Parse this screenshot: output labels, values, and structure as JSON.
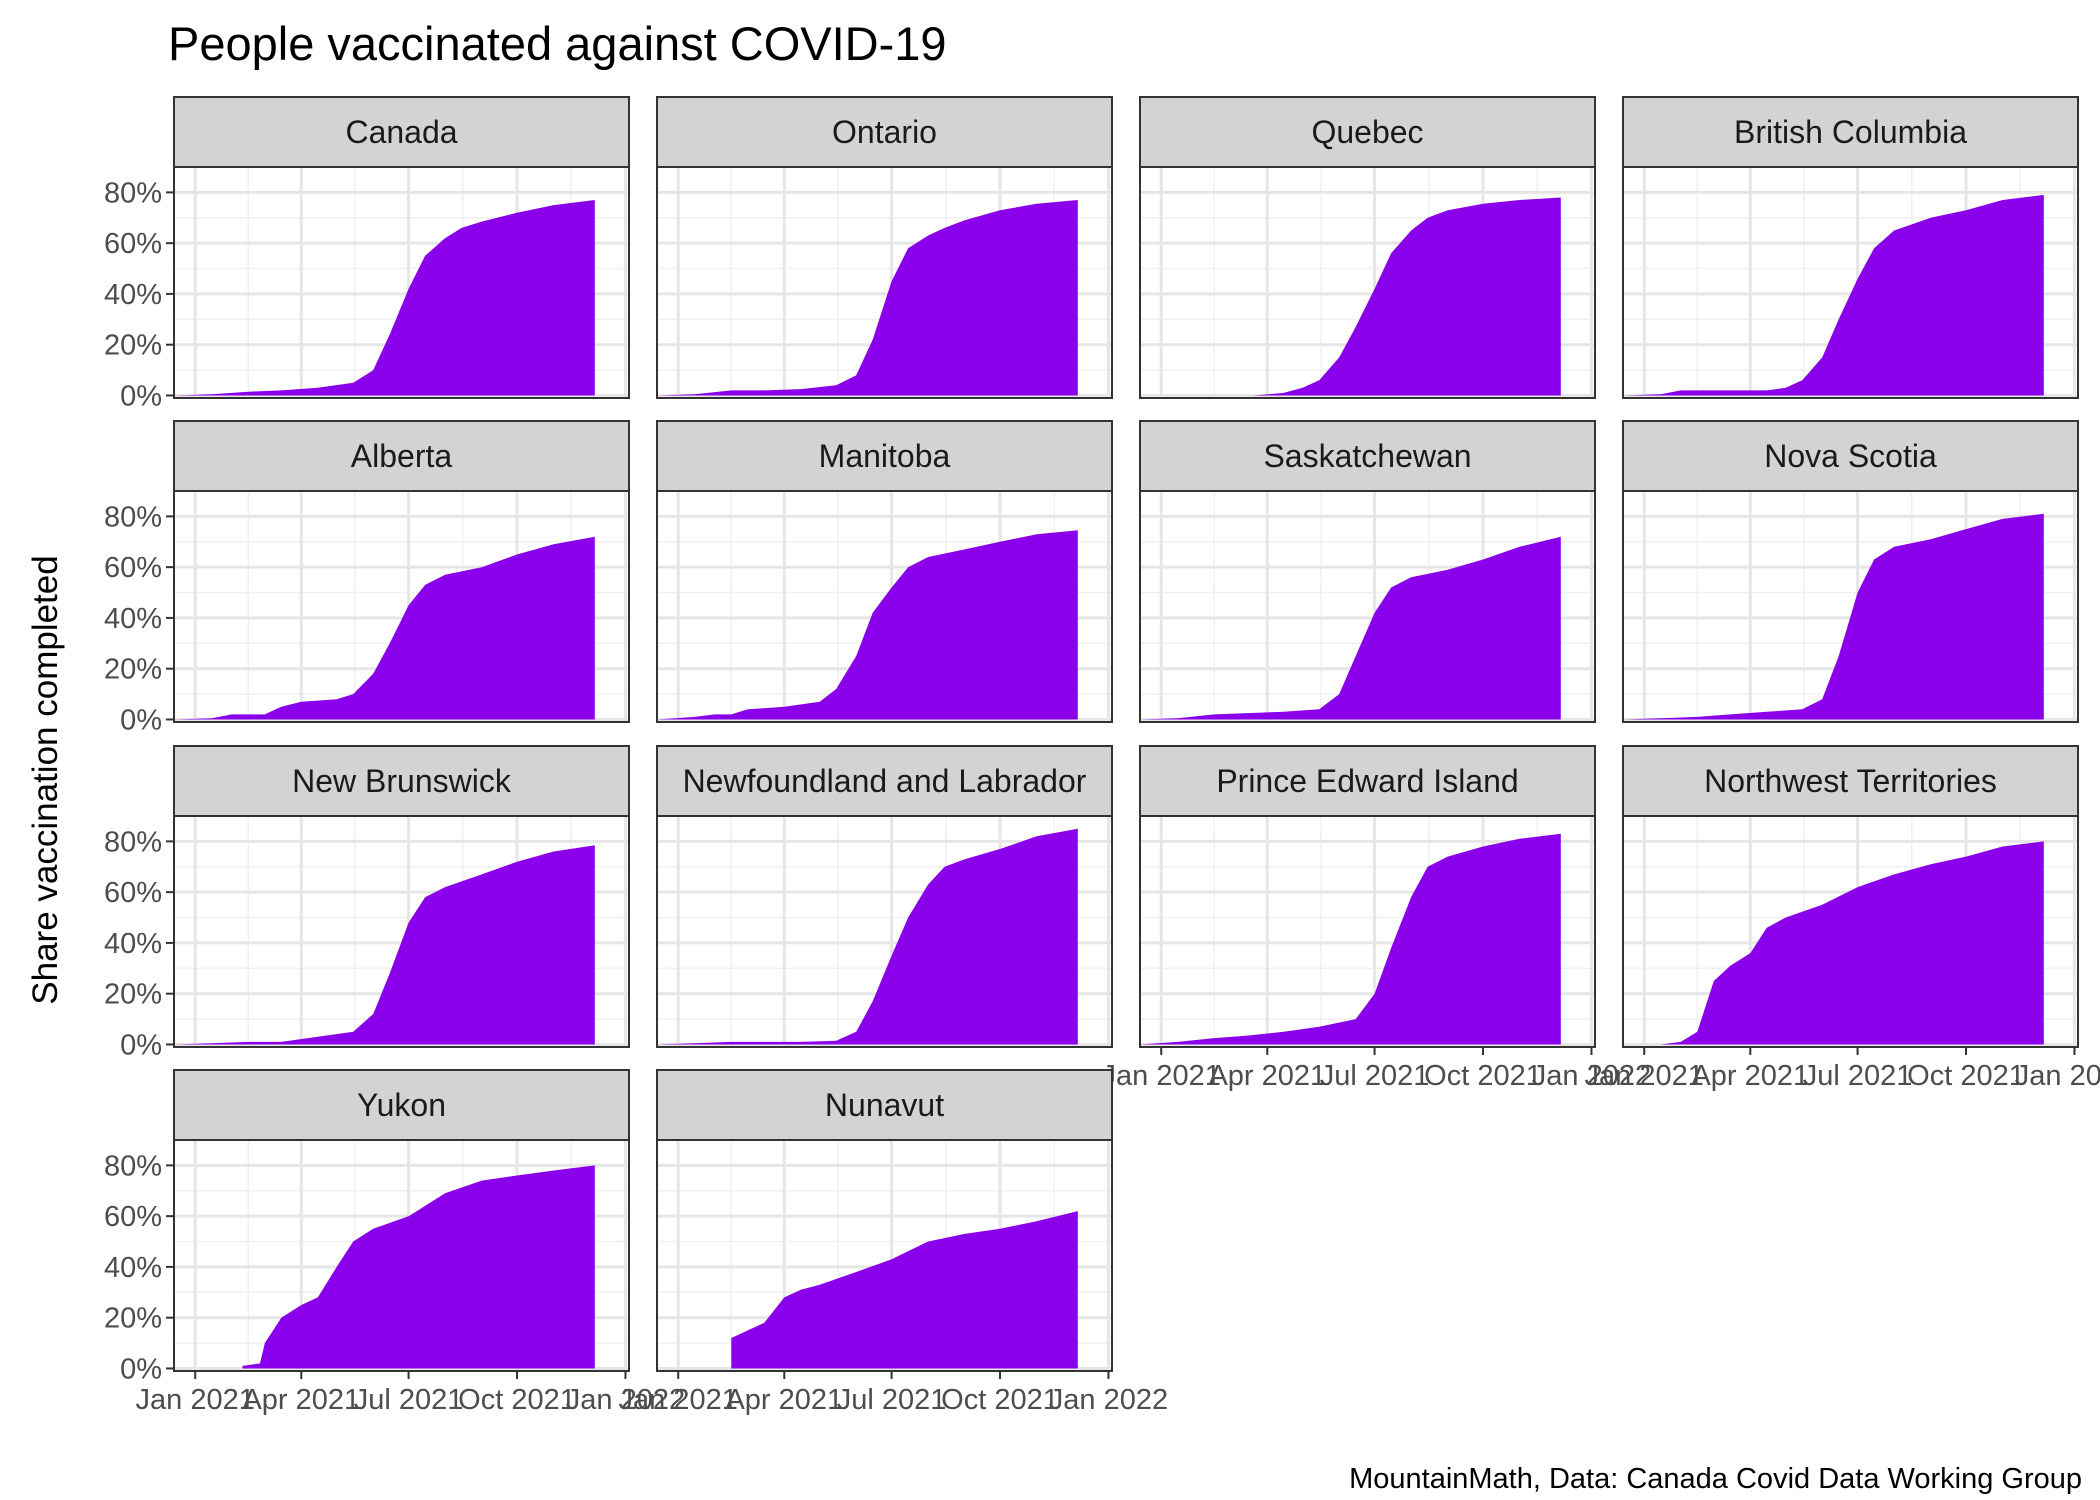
{
  "chart_data": {
    "type": "area",
    "title": "People vaccinated against COVID-19",
    "ylabel": "Share vaccination completed",
    "xlabel": "",
    "caption": "MountainMath, Data: Canada Covid Data Working Group",
    "x_ticks": [
      "2021-01-01",
      "2021-04-01",
      "2021-07-01",
      "2021-10-01",
      "2022-01-01"
    ],
    "x_tick_labels": [
      "Jan 2021",
      "Apr 2021",
      "Jul 2021",
      "Oct 2021",
      "Jan 2022"
    ],
    "xlim": [
      "2020-12-14",
      "2022-01-04"
    ],
    "y_ticks": [
      0,
      0.2,
      0.4,
      0.6,
      0.8
    ],
    "y_tick_labels": [
      "0%",
      "20%",
      "40%",
      "60%",
      "80%"
    ],
    "ylim": [
      -0.01,
      0.9
    ],
    "fill_color": "#8B00EB",
    "strip_color": "#D3D3D3",
    "grid": true,
    "facets": [
      {
        "name": "Canada",
        "points": [
          [
            "2020-12-14",
            0
          ],
          [
            "2021-01-15",
            0.005
          ],
          [
            "2021-02-15",
            0.015
          ],
          [
            "2021-03-15",
            0.02
          ],
          [
            "2021-04-15",
            0.03
          ],
          [
            "2021-05-15",
            0.05
          ],
          [
            "2021-06-01",
            0.1
          ],
          [
            "2021-06-15",
            0.24
          ],
          [
            "2021-07-01",
            0.42
          ],
          [
            "2021-07-15",
            0.55
          ],
          [
            "2021-08-01",
            0.62
          ],
          [
            "2021-08-15",
            0.66
          ],
          [
            "2021-09-01",
            0.685
          ],
          [
            "2021-10-01",
            0.72
          ],
          [
            "2021-11-01",
            0.75
          ],
          [
            "2021-12-06",
            0.77
          ]
        ]
      },
      {
        "name": "Ontario",
        "points": [
          [
            "2020-12-14",
            0
          ],
          [
            "2021-01-15",
            0.005
          ],
          [
            "2021-02-15",
            0.02
          ],
          [
            "2021-03-15",
            0.02
          ],
          [
            "2021-04-15",
            0.025
          ],
          [
            "2021-05-15",
            0.04
          ],
          [
            "2021-06-01",
            0.08
          ],
          [
            "2021-06-15",
            0.22
          ],
          [
            "2021-07-01",
            0.45
          ],
          [
            "2021-07-15",
            0.58
          ],
          [
            "2021-08-01",
            0.63
          ],
          [
            "2021-08-15",
            0.66
          ],
          [
            "2021-09-01",
            0.69
          ],
          [
            "2021-10-01",
            0.73
          ],
          [
            "2021-11-01",
            0.755
          ],
          [
            "2021-12-06",
            0.77
          ]
        ]
      },
      {
        "name": "Quebec",
        "points": [
          [
            "2021-03-20",
            0
          ],
          [
            "2021-04-15",
            0.01
          ],
          [
            "2021-05-01",
            0.03
          ],
          [
            "2021-05-15",
            0.06
          ],
          [
            "2021-06-01",
            0.15
          ],
          [
            "2021-06-15",
            0.27
          ],
          [
            "2021-07-01",
            0.42
          ],
          [
            "2021-07-15",
            0.56
          ],
          [
            "2021-08-01",
            0.65
          ],
          [
            "2021-08-15",
            0.7
          ],
          [
            "2021-09-01",
            0.73
          ],
          [
            "2021-10-01",
            0.755
          ],
          [
            "2021-11-01",
            0.77
          ],
          [
            "2021-12-06",
            0.78
          ]
        ]
      },
      {
        "name": "British Columbia",
        "points": [
          [
            "2020-12-14",
            0
          ],
          [
            "2021-01-15",
            0.005
          ],
          [
            "2021-02-01",
            0.02
          ],
          [
            "2021-03-15",
            0.02
          ],
          [
            "2021-04-15",
            0.02
          ],
          [
            "2021-05-01",
            0.03
          ],
          [
            "2021-05-15",
            0.06
          ],
          [
            "2021-06-01",
            0.15
          ],
          [
            "2021-06-15",
            0.3
          ],
          [
            "2021-07-01",
            0.46
          ],
          [
            "2021-07-15",
            0.58
          ],
          [
            "2021-08-01",
            0.65
          ],
          [
            "2021-09-01",
            0.7
          ],
          [
            "2021-10-01",
            0.73
          ],
          [
            "2021-11-01",
            0.77
          ],
          [
            "2021-12-06",
            0.79
          ]
        ]
      },
      {
        "name": "Alberta",
        "points": [
          [
            "2020-12-14",
            0
          ],
          [
            "2021-01-15",
            0.005
          ],
          [
            "2021-02-01",
            0.02
          ],
          [
            "2021-03-01",
            0.02
          ],
          [
            "2021-03-15",
            0.05
          ],
          [
            "2021-04-01",
            0.07
          ],
          [
            "2021-05-01",
            0.08
          ],
          [
            "2021-05-15",
            0.1
          ],
          [
            "2021-06-01",
            0.18
          ],
          [
            "2021-06-15",
            0.3
          ],
          [
            "2021-07-01",
            0.45
          ],
          [
            "2021-07-15",
            0.53
          ],
          [
            "2021-08-01",
            0.57
          ],
          [
            "2021-09-01",
            0.6
          ],
          [
            "2021-10-01",
            0.65
          ],
          [
            "2021-11-01",
            0.69
          ],
          [
            "2021-12-06",
            0.72
          ]
        ]
      },
      {
        "name": "Manitoba",
        "points": [
          [
            "2020-12-14",
            0
          ],
          [
            "2021-01-15",
            0.01
          ],
          [
            "2021-02-01",
            0.02
          ],
          [
            "2021-02-15",
            0.02
          ],
          [
            "2021-03-01",
            0.04
          ],
          [
            "2021-04-01",
            0.05
          ],
          [
            "2021-05-01",
            0.07
          ],
          [
            "2021-05-15",
            0.12
          ],
          [
            "2021-06-01",
            0.25
          ],
          [
            "2021-06-15",
            0.42
          ],
          [
            "2021-07-01",
            0.52
          ],
          [
            "2021-07-15",
            0.6
          ],
          [
            "2021-08-01",
            0.64
          ],
          [
            "2021-09-01",
            0.67
          ],
          [
            "2021-10-01",
            0.7
          ],
          [
            "2021-11-01",
            0.73
          ],
          [
            "2021-12-06",
            0.745
          ]
        ]
      },
      {
        "name": "Saskatchewan",
        "points": [
          [
            "2020-12-14",
            0
          ],
          [
            "2021-01-15",
            0.005
          ],
          [
            "2021-02-15",
            0.02
          ],
          [
            "2021-03-15",
            0.025
          ],
          [
            "2021-04-15",
            0.03
          ],
          [
            "2021-05-15",
            0.04
          ],
          [
            "2021-06-01",
            0.1
          ],
          [
            "2021-06-15",
            0.25
          ],
          [
            "2021-07-01",
            0.42
          ],
          [
            "2021-07-15",
            0.52
          ],
          [
            "2021-08-01",
            0.56
          ],
          [
            "2021-09-01",
            0.59
          ],
          [
            "2021-10-01",
            0.63
          ],
          [
            "2021-11-01",
            0.68
          ],
          [
            "2021-12-06",
            0.72
          ]
        ]
      },
      {
        "name": "Nova Scotia",
        "points": [
          [
            "2020-12-14",
            0
          ],
          [
            "2021-01-15",
            0.005
          ],
          [
            "2021-02-15",
            0.01
          ],
          [
            "2021-03-15",
            0.02
          ],
          [
            "2021-04-15",
            0.03
          ],
          [
            "2021-05-15",
            0.04
          ],
          [
            "2021-06-01",
            0.08
          ],
          [
            "2021-06-15",
            0.25
          ],
          [
            "2021-07-01",
            0.5
          ],
          [
            "2021-07-15",
            0.63
          ],
          [
            "2021-08-01",
            0.68
          ],
          [
            "2021-09-01",
            0.71
          ],
          [
            "2021-10-01",
            0.75
          ],
          [
            "2021-11-01",
            0.79
          ],
          [
            "2021-12-06",
            0.81
          ]
        ]
      },
      {
        "name": "New Brunswick",
        "points": [
          [
            "2020-12-14",
            0
          ],
          [
            "2021-01-15",
            0.005
          ],
          [
            "2021-02-15",
            0.01
          ],
          [
            "2021-03-15",
            0.01
          ],
          [
            "2021-04-15",
            0.03
          ],
          [
            "2021-05-15",
            0.05
          ],
          [
            "2021-06-01",
            0.12
          ],
          [
            "2021-06-15",
            0.28
          ],
          [
            "2021-07-01",
            0.48
          ],
          [
            "2021-07-15",
            0.58
          ],
          [
            "2021-08-01",
            0.62
          ],
          [
            "2021-09-01",
            0.67
          ],
          [
            "2021-10-01",
            0.72
          ],
          [
            "2021-11-01",
            0.76
          ],
          [
            "2021-12-06",
            0.785
          ]
        ]
      },
      {
        "name": "Newfoundland and Labrador",
        "points": [
          [
            "2020-12-14",
            0
          ],
          [
            "2021-01-15",
            0.005
          ],
          [
            "2021-02-15",
            0.01
          ],
          [
            "2021-03-15",
            0.01
          ],
          [
            "2021-04-15",
            0.01
          ],
          [
            "2021-05-15",
            0.015
          ],
          [
            "2021-06-01",
            0.05
          ],
          [
            "2021-06-15",
            0.17
          ],
          [
            "2021-07-01",
            0.35
          ],
          [
            "2021-07-15",
            0.5
          ],
          [
            "2021-08-01",
            0.63
          ],
          [
            "2021-08-15",
            0.7
          ],
          [
            "2021-09-01",
            0.73
          ],
          [
            "2021-10-01",
            0.77
          ],
          [
            "2021-11-01",
            0.82
          ],
          [
            "2021-12-06",
            0.85
          ]
        ]
      },
      {
        "name": "Prince Edward Island",
        "points": [
          [
            "2020-12-14",
            0
          ],
          [
            "2021-01-15",
            0.01
          ],
          [
            "2021-02-15",
            0.025
          ],
          [
            "2021-03-15",
            0.035
          ],
          [
            "2021-04-15",
            0.05
          ],
          [
            "2021-05-15",
            0.07
          ],
          [
            "2021-06-15",
            0.1
          ],
          [
            "2021-07-01",
            0.2
          ],
          [
            "2021-07-15",
            0.38
          ],
          [
            "2021-08-01",
            0.58
          ],
          [
            "2021-08-15",
            0.7
          ],
          [
            "2021-09-01",
            0.74
          ],
          [
            "2021-10-01",
            0.78
          ],
          [
            "2021-11-01",
            0.81
          ],
          [
            "2021-12-06",
            0.83
          ]
        ]
      },
      {
        "name": "Northwest Territories",
        "points": [
          [
            "2021-01-15",
            0
          ],
          [
            "2021-02-01",
            0.01
          ],
          [
            "2021-02-15",
            0.05
          ],
          [
            "2021-03-01",
            0.25
          ],
          [
            "2021-03-15",
            0.31
          ],
          [
            "2021-04-01",
            0.36
          ],
          [
            "2021-04-15",
            0.46
          ],
          [
            "2021-05-01",
            0.5
          ],
          [
            "2021-06-01",
            0.55
          ],
          [
            "2021-07-01",
            0.62
          ],
          [
            "2021-08-01",
            0.67
          ],
          [
            "2021-09-01",
            0.71
          ],
          [
            "2021-10-01",
            0.74
          ],
          [
            "2021-11-01",
            0.78
          ],
          [
            "2021-12-06",
            0.8
          ]
        ]
      },
      {
        "name": "Yukon",
        "points": [
          [
            "2021-02-10",
            0.01
          ],
          [
            "2021-02-25",
            0.02
          ],
          [
            "2021-03-01",
            0.1
          ],
          [
            "2021-03-15",
            0.2
          ],
          [
            "2021-04-01",
            0.25
          ],
          [
            "2021-04-15",
            0.28
          ],
          [
            "2021-05-01",
            0.4
          ],
          [
            "2021-05-15",
            0.5
          ],
          [
            "2021-06-01",
            0.55
          ],
          [
            "2021-07-01",
            0.6
          ],
          [
            "2021-08-01",
            0.69
          ],
          [
            "2021-09-01",
            0.74
          ],
          [
            "2021-10-01",
            0.76
          ],
          [
            "2021-11-01",
            0.78
          ],
          [
            "2021-12-06",
            0.8
          ]
        ]
      },
      {
        "name": "Nunavut",
        "points": [
          [
            "2021-02-15",
            0.12
          ],
          [
            "2021-03-01",
            0.15
          ],
          [
            "2021-03-15",
            0.18
          ],
          [
            "2021-04-01",
            0.28
          ],
          [
            "2021-04-15",
            0.31
          ],
          [
            "2021-05-01",
            0.33
          ],
          [
            "2021-06-01",
            0.38
          ],
          [
            "2021-07-01",
            0.43
          ],
          [
            "2021-08-01",
            0.5
          ],
          [
            "2021-09-01",
            0.53
          ],
          [
            "2021-10-01",
            0.55
          ],
          [
            "2021-11-01",
            0.58
          ],
          [
            "2021-12-06",
            0.62
          ]
        ]
      }
    ]
  }
}
